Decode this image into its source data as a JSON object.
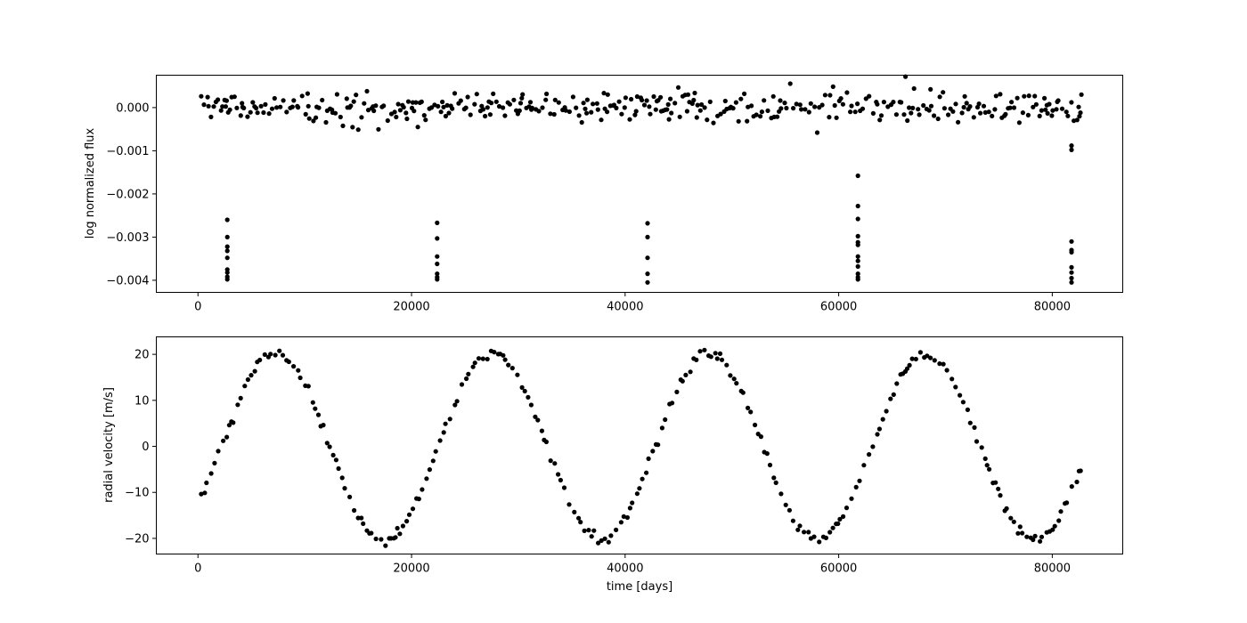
{
  "chart_data": [
    {
      "type": "scatter",
      "title": "",
      "xlabel": "",
      "ylabel": "log normalized flux",
      "xlim": [
        -3900,
        86600
      ],
      "ylim": [
        -0.00428,
        0.00075
      ],
      "xticks": [
        0,
        20000,
        40000,
        60000,
        80000
      ],
      "xtick_labels": [
        "0",
        "20000",
        "40000",
        "60000",
        "80000"
      ],
      "yticks": [
        0.0,
        -0.001,
        -0.002,
        -0.003,
        -0.004
      ],
      "ytick_labels": [
        "0.000",
        "−0.001",
        "−0.002",
        "−0.003",
        "−0.004"
      ],
      "grid": false,
      "marker_color": "#000000",
      "transit_points": [
        [
          2750,
          -0.0026
        ],
        [
          2750,
          -0.003
        ],
        [
          2750,
          -0.00322
        ],
        [
          2750,
          -0.00332
        ],
        [
          2750,
          -0.00348
        ],
        [
          2750,
          -0.00375
        ],
        [
          2750,
          -0.00382
        ],
        [
          2750,
          -0.00392
        ],
        [
          2750,
          -0.00398
        ],
        [
          22400,
          -0.00267
        ],
        [
          22400,
          -0.00303
        ],
        [
          22400,
          -0.00345
        ],
        [
          22400,
          -0.00362
        ],
        [
          22400,
          -0.00385
        ],
        [
          22400,
          -0.00393
        ],
        [
          22400,
          -0.00398
        ],
        [
          42100,
          -0.00268
        ],
        [
          42100,
          -0.003
        ],
        [
          42100,
          -0.00348
        ],
        [
          42100,
          -0.00385
        ],
        [
          42100,
          -0.00405
        ],
        [
          61800,
          -0.00158
        ],
        [
          61800,
          -0.00228
        ],
        [
          61800,
          -0.00258
        ],
        [
          61800,
          -0.00298
        ],
        [
          61800,
          -0.00312
        ],
        [
          61800,
          -0.00318
        ],
        [
          61800,
          -0.00345
        ],
        [
          61800,
          -0.00355
        ],
        [
          61800,
          -0.00368
        ],
        [
          61800,
          -0.00385
        ],
        [
          61800,
          -0.00393
        ],
        [
          61800,
          -0.00398
        ],
        [
          81800,
          -0.00088
        ],
        [
          81800,
          -0.00098
        ],
        [
          81800,
          -0.0031
        ],
        [
          81800,
          -0.0033
        ],
        [
          81800,
          -0.00335
        ],
        [
          81800,
          -0.0037
        ],
        [
          81800,
          -0.00382
        ],
        [
          81800,
          -0.00395
        ],
        [
          81800,
          -0.00405
        ]
      ],
      "baseline_scatter_std": 0.00018
    },
    {
      "type": "scatter",
      "title": "",
      "xlabel": "time [days]",
      "ylabel": "radial velocity [m/s]",
      "xlim": [
        -3900,
        86600
      ],
      "ylim": [
        -23.4,
        23.8
      ],
      "xticks": [
        0,
        20000,
        40000,
        60000,
        80000
      ],
      "xtick_labels": [
        "0",
        "20000",
        "40000",
        "60000",
        "80000"
      ],
      "yticks": [
        20,
        10,
        0,
        -10,
        -20
      ],
      "ytick_labels": [
        "20",
        "10",
        "0",
        "−10",
        "−20"
      ],
      "grid": false,
      "marker_color": "#000000",
      "sinusoid": {
        "amplitude": 20.2,
        "period_days": 20300,
        "phase_zero_day": 12350
      }
    }
  ]
}
